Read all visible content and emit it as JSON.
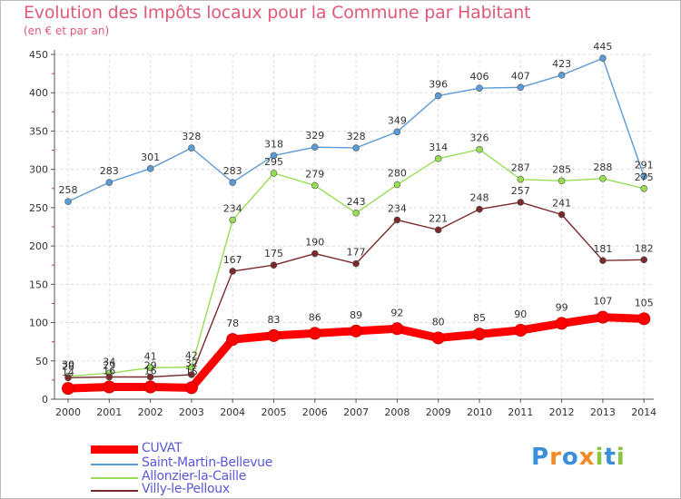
{
  "chart_data": {
    "type": "line",
    "title": "Evolution des Impôts locaux pour la Commune par Habitant",
    "subtitle": "(en € et par an)",
    "xlabel": "",
    "ylabel": "",
    "ylim": [
      0,
      450
    ],
    "yticks": [
      0,
      50,
      100,
      150,
      200,
      250,
      300,
      350,
      400,
      450
    ],
    "grid": true,
    "legend_position": "bottom-left",
    "x": [
      "2000",
      "2001",
      "2002",
      "2003",
      "2004",
      "2005",
      "2006",
      "2007",
      "2008",
      "2009",
      "2010",
      "2011",
      "2012",
      "2013",
      "2014"
    ],
    "series": [
      {
        "name": "CUVAT",
        "color": "#ff0000",
        "values": [
          14,
          16,
          16,
          15,
          78,
          83,
          86,
          89,
          92,
          80,
          85,
          90,
          99,
          107,
          105
        ],
        "labels": [
          "14",
          "16",
          "16",
          "15",
          "78",
          "83",
          "86",
          "89",
          "92",
          "80",
          "85",
          "90",
          "99",
          "107",
          "105"
        ]
      },
      {
        "name": "Saint-Martin-Bellevue",
        "color": "#5b9bd5",
        "values": [
          258,
          283,
          301,
          328,
          283,
          318,
          329,
          328,
          349,
          396,
          406,
          407,
          423,
          445,
          291
        ],
        "labels": [
          "258",
          "283",
          "301",
          "328",
          "283",
          "318",
          "329",
          "328",
          "349",
          "396",
          "406",
          "407",
          "423",
          "445",
          "291"
        ]
      },
      {
        "name": "Allonzier-la-Caille",
        "color": "#99dd55",
        "values": [
          30,
          34,
          41,
          42,
          234,
          295,
          279,
          243,
          280,
          314,
          326,
          287,
          285,
          288,
          275
        ],
        "labels": [
          "30",
          "34",
          "41",
          "42",
          "234",
          "295",
          "279",
          "243",
          "280",
          "314",
          "326",
          "287",
          "285",
          "288",
          "275"
        ]
      },
      {
        "name": "Villy-le-Pelloux",
        "color": "#7a2a2a",
        "values": [
          28,
          29,
          29,
          32,
          167,
          175,
          190,
          177,
          234,
          221,
          248,
          257,
          241,
          181,
          182
        ],
        "labels": [
          "28",
          "29",
          "29",
          "32",
          "167",
          "175",
          "190",
          "177",
          "234",
          "221",
          "248",
          "257",
          "241",
          "181",
          "182"
        ]
      }
    ]
  },
  "logo": {
    "letters": [
      {
        "char": "P",
        "color": "#3a8fd8"
      },
      {
        "char": "r",
        "color": "#f08a24"
      },
      {
        "char": "o",
        "color": "#3a8fd8"
      },
      {
        "char": "x",
        "color": "#f08a24"
      },
      {
        "char": "i",
        "color": "#88c540"
      },
      {
        "char": "t",
        "color": "#3a8fd8"
      },
      {
        "char": "i",
        "color": "#88c540"
      }
    ]
  }
}
